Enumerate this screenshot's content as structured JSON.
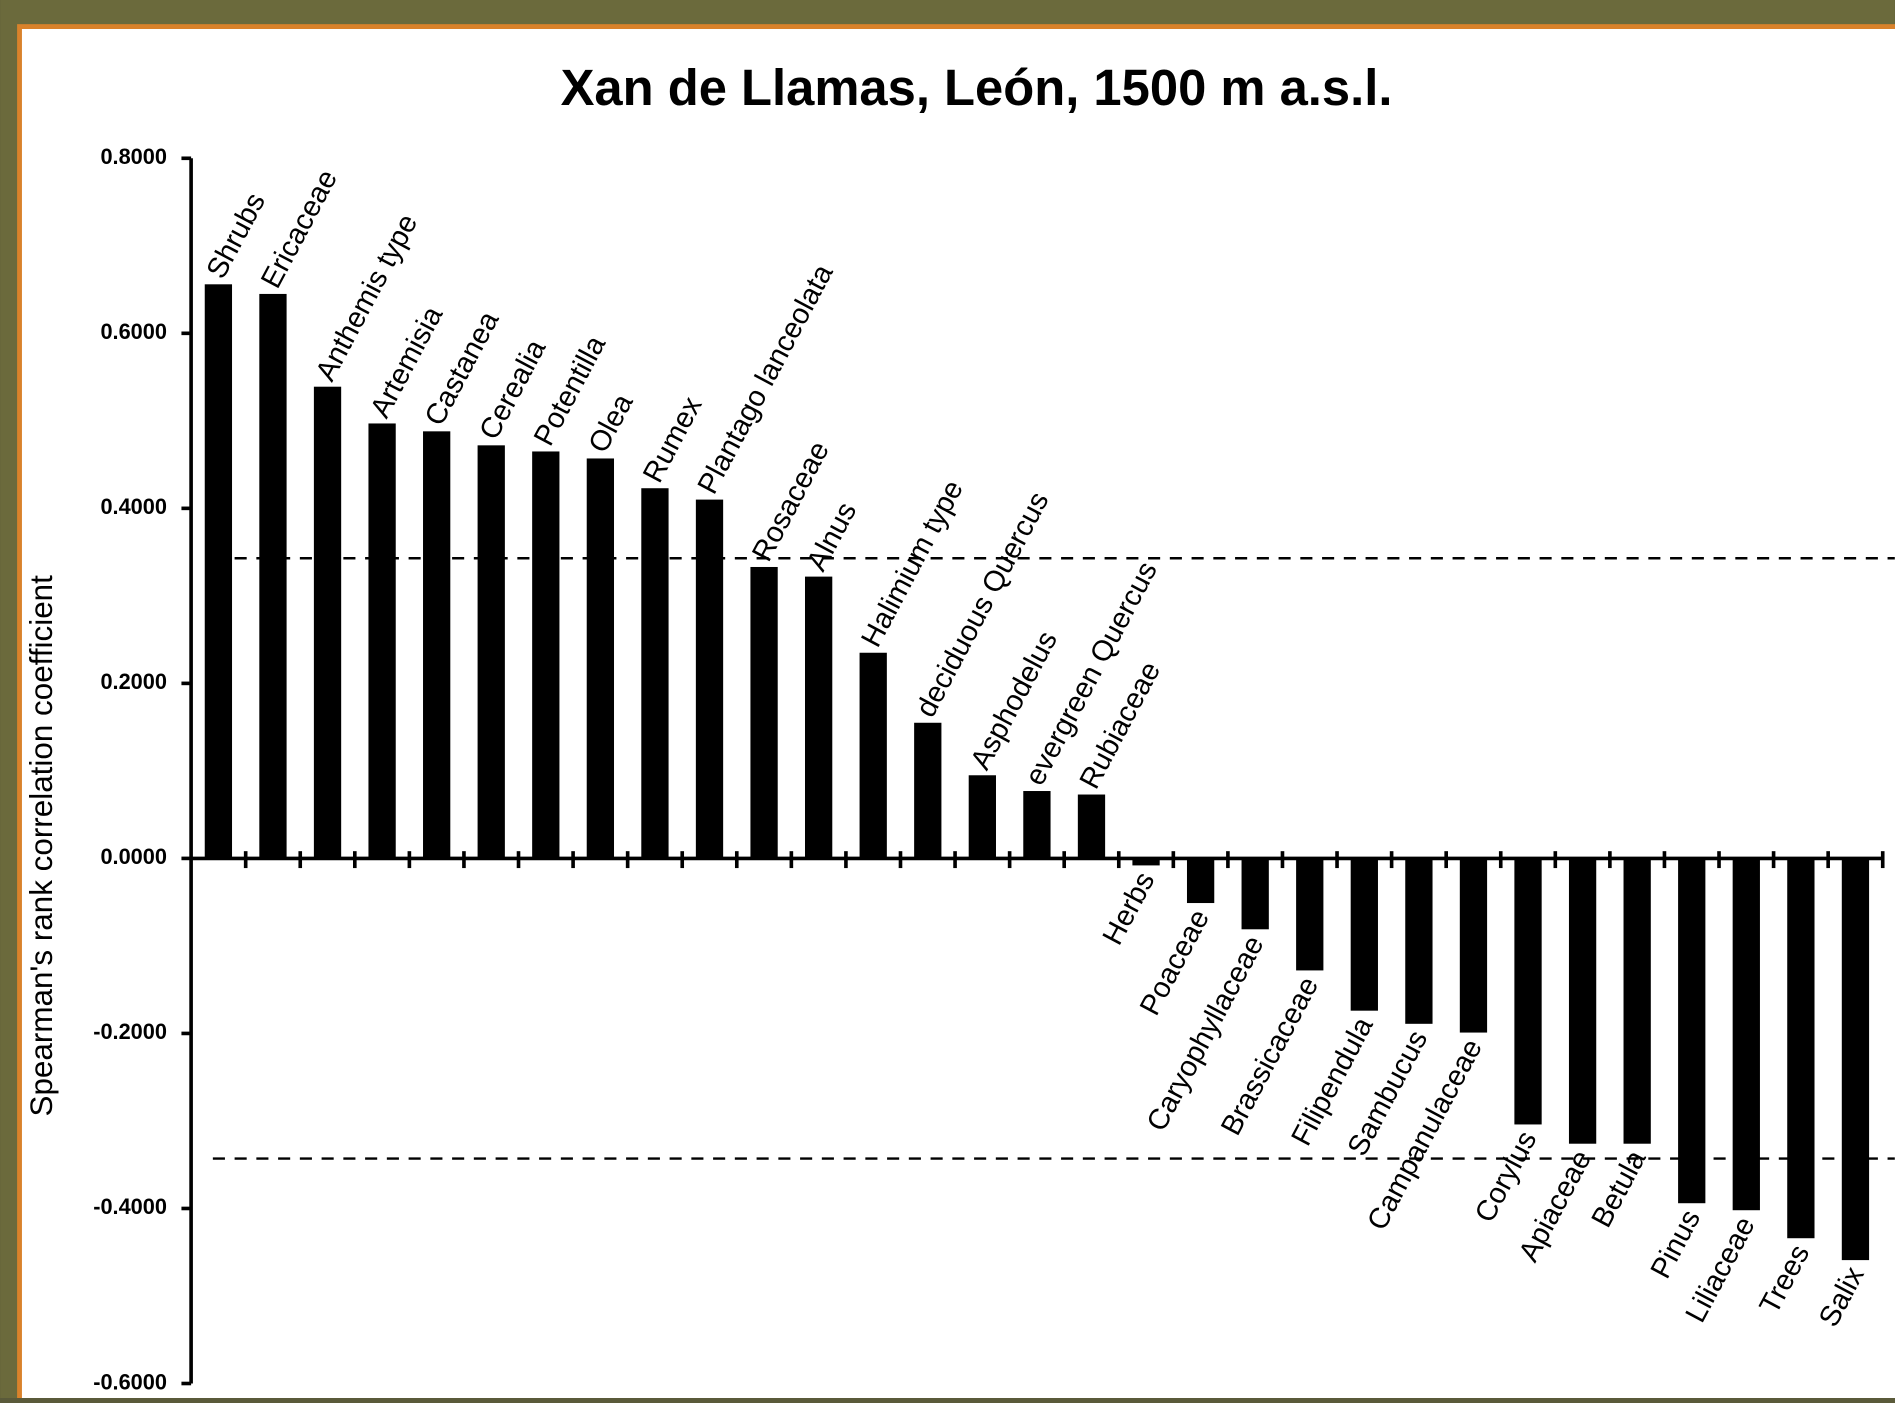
{
  "chart_data": {
    "type": "bar",
    "title": "Xan de Llamas, León, 1500 m a.s.l.",
    "y_label": "Spearman's rank correlation coefficient",
    "categories": [
      "Shrubs",
      "Ericaceae",
      "Anthemis type",
      "Artemisia",
      "Castanea",
      "Cerealia",
      "Potentilla",
      "Olea",
      "Rumex",
      "Plantago lanceolata",
      "Rosaceae",
      "Alnus",
      "Halimium type",
      "deciduous Quercus",
      "Asphodelus",
      "evergreen Quercus",
      "Rubiaceae",
      "Herbs",
      "Poaceae",
      "Caryophyllaceae",
      "Brassicaceae",
      "Filipendula",
      "Sambucus",
      "Campanulaceae",
      "Corylus",
      "Apiaceae",
      "Betula",
      "Pinus",
      "Liliaceae",
      "Trees",
      "Salix"
    ],
    "values": [
      0.656,
      0.645,
      0.539,
      0.497,
      0.488,
      0.472,
      0.465,
      0.457,
      0.423,
      0.41,
      0.333,
      0.322,
      0.235,
      0.155,
      0.095,
      0.077,
      0.073,
      -0.008,
      -0.051,
      -0.081,
      -0.128,
      -0.174,
      -0.189,
      -0.199,
      -0.304,
      -0.326,
      -0.326,
      -0.394,
      -0.402,
      -0.434,
      -0.459
    ],
    "color": "#000000",
    "ylim": [
      -0.6,
      0.8
    ],
    "yticks": [
      {
        "value": 0.8,
        "label": "0.8000"
      },
      {
        "value": 0.6,
        "label": "0.6000"
      },
      {
        "value": 0.4,
        "label": "0.4000"
      },
      {
        "value": 0.2,
        "label": "0.2000"
      },
      {
        "value": 0,
        "label": "0.0000"
      },
      {
        "value": -0.2,
        "label": "-0.2000"
      },
      {
        "value": -0.4,
        "label": "-0.4000"
      },
      {
        "value": -0.6,
        "label": "-0.6000"
      }
    ],
    "reference_lines": [
      0.343,
      -0.343
    ],
    "grid": false
  }
}
